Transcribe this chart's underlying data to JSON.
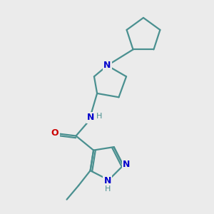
{
  "bg_color": "#ebebeb",
  "bond_color": "#4a9090",
  "N_color": "#0000cc",
  "O_color": "#cc0000",
  "line_width": 1.6,
  "fig_size": [
    3.0,
    3.0
  ],
  "dpi": 100,
  "xlim": [
    0,
    10
  ],
  "ylim": [
    0,
    10
  ]
}
